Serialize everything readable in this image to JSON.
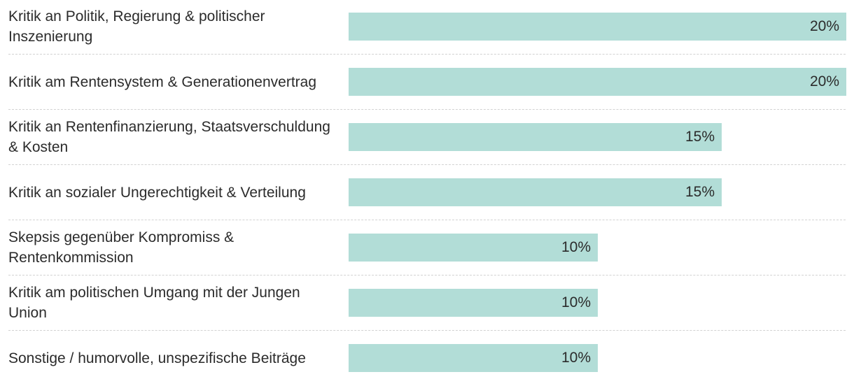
{
  "chart_data": {
    "type": "bar",
    "orientation": "horizontal",
    "categories": [
      "Kritik an Politik, Regierung & politischer Inszenierung",
      "Kritik am Rentensystem & Generationenvertrag",
      "Kritik an Rentenfinanzierung, Staatsverschuldung & Kosten",
      "Kritik an sozialer Ungerechtigkeit & Verteilung",
      "Skepsis gegenüber Kompromiss & Rentenkommission",
      "Kritik am politischen Umgang mit der Jungen Union",
      "Sonstige / humorvolle, unspezifische Beiträge"
    ],
    "values": [
      20,
      20,
      15,
      15,
      10,
      10,
      10
    ],
    "value_labels": [
      "20%",
      "20%",
      "15%",
      "15%",
      "10%",
      "10%",
      "10%"
    ],
    "xlim": [
      0,
      20
    ],
    "unit": "%",
    "grid": false,
    "colors": {
      "bar": "#b2ddd7",
      "separator": "#d2d2d2",
      "text": "#2b2b2b"
    }
  }
}
